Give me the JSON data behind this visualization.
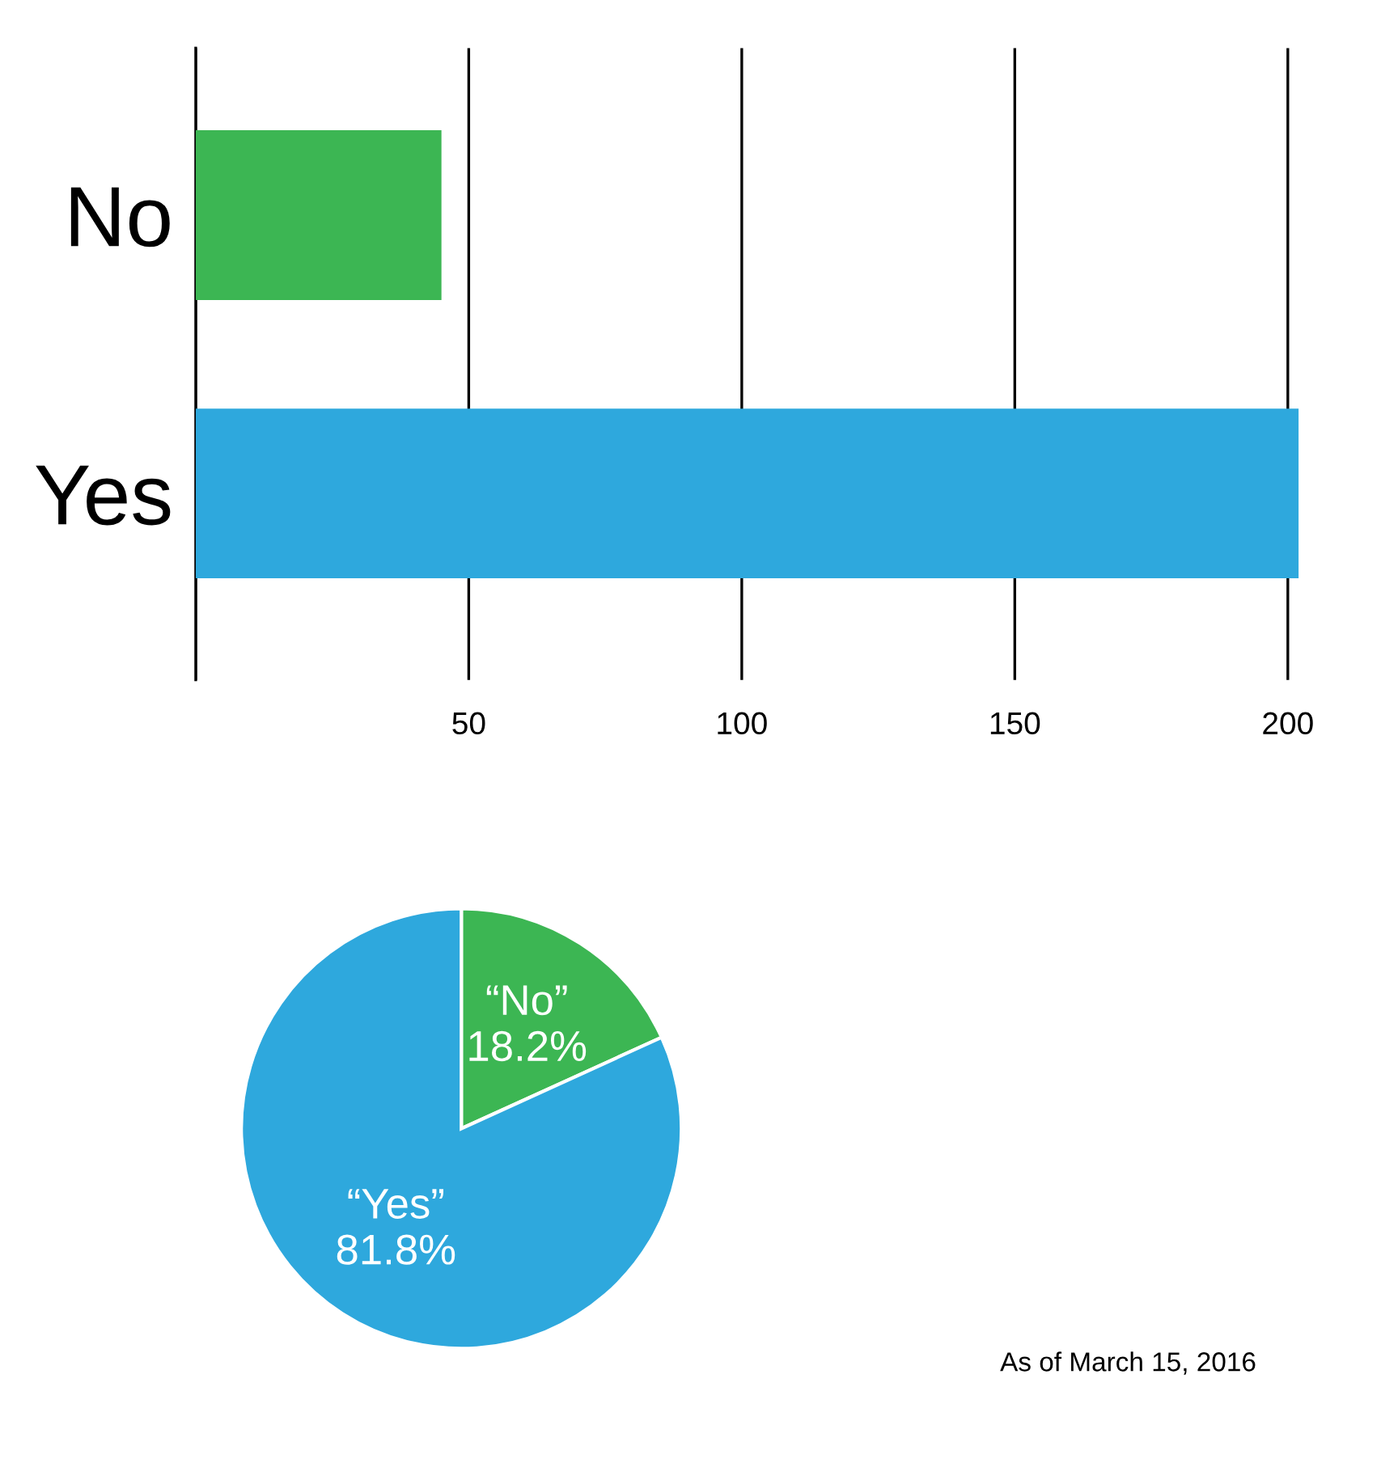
{
  "chart_data": [
    {
      "type": "bar",
      "orientation": "horizontal",
      "categories": [
        "No",
        "Yes"
      ],
      "values": [
        45,
        202
      ],
      "colors": [
        "#3cb653",
        "#2ea8dd"
      ],
      "xlim": [
        0,
        202
      ],
      "xticks": [
        {
          "value": 0,
          "label": null
        },
        50,
        100,
        150,
        200
      ],
      "grid": "x"
    },
    {
      "type": "pie",
      "categories": [
        "“No”",
        "“Yes”"
      ],
      "values": [
        18.2,
        81.8
      ],
      "colors": [
        "#3cb653",
        "#2ea8dd"
      ],
      "value_labels": [
        "18.2%",
        "81.8%"
      ],
      "annotations": [
        "As of March 15, 2016"
      ]
    }
  ]
}
